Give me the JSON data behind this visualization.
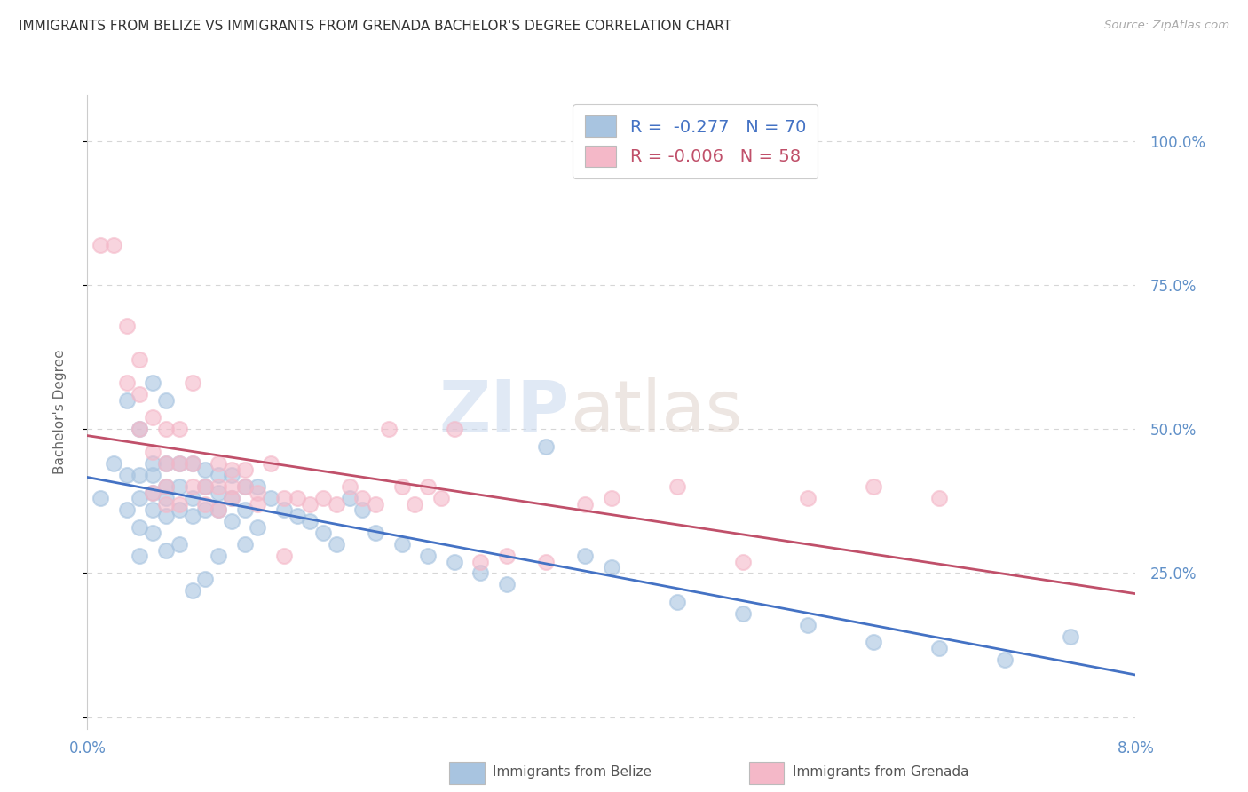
{
  "title": "IMMIGRANTS FROM BELIZE VS IMMIGRANTS FROM GRENADA BACHELOR'S DEGREE CORRELATION CHART",
  "source": "Source: ZipAtlas.com",
  "ylabel": "Bachelor's Degree",
  "xlim": [
    0.0,
    0.08
  ],
  "ylim": [
    -0.02,
    1.08
  ],
  "yticks": [
    0.0,
    0.25,
    0.5,
    0.75,
    1.0
  ],
  "ytick_labels_right": [
    "",
    "25.0%",
    "50.0%",
    "75.0%",
    "100.0%"
  ],
  "xticks": [
    0.0,
    0.02,
    0.04,
    0.06,
    0.08
  ],
  "xtick_labels": [
    "0.0%",
    "",
    "",
    "",
    "8.0%"
  ],
  "bg_color": "#ffffff",
  "grid_color": "#cccccc",
  "watermark_zip": "ZIP",
  "watermark_atlas": "atlas",
  "color_belize": "#a8c4e0",
  "color_grenada": "#f4b8c8",
  "line_color_belize": "#4472c4",
  "line_color_grenada": "#c0506a",
  "tick_color": "#6090c8",
  "belize_x": [
    0.001,
    0.002,
    0.003,
    0.003,
    0.003,
    0.004,
    0.004,
    0.004,
    0.004,
    0.004,
    0.005,
    0.005,
    0.005,
    0.005,
    0.005,
    0.005,
    0.006,
    0.006,
    0.006,
    0.006,
    0.006,
    0.006,
    0.007,
    0.007,
    0.007,
    0.007,
    0.008,
    0.008,
    0.008,
    0.008,
    0.009,
    0.009,
    0.009,
    0.009,
    0.01,
    0.01,
    0.01,
    0.01,
    0.011,
    0.011,
    0.011,
    0.012,
    0.012,
    0.012,
    0.013,
    0.013,
    0.014,
    0.015,
    0.016,
    0.017,
    0.018,
    0.019,
    0.02,
    0.021,
    0.022,
    0.024,
    0.026,
    0.028,
    0.03,
    0.032,
    0.035,
    0.038,
    0.04,
    0.045,
    0.05,
    0.055,
    0.06,
    0.065,
    0.07,
    0.075
  ],
  "belize_y": [
    0.38,
    0.44,
    0.42,
    0.55,
    0.36,
    0.5,
    0.42,
    0.38,
    0.33,
    0.28,
    0.58,
    0.44,
    0.42,
    0.39,
    0.36,
    0.32,
    0.55,
    0.44,
    0.4,
    0.38,
    0.35,
    0.29,
    0.44,
    0.4,
    0.36,
    0.3,
    0.44,
    0.38,
    0.35,
    0.22,
    0.43,
    0.4,
    0.36,
    0.24,
    0.42,
    0.39,
    0.36,
    0.28,
    0.42,
    0.38,
    0.34,
    0.4,
    0.36,
    0.3,
    0.4,
    0.33,
    0.38,
    0.36,
    0.35,
    0.34,
    0.32,
    0.3,
    0.38,
    0.36,
    0.32,
    0.3,
    0.28,
    0.27,
    0.25,
    0.23,
    0.47,
    0.28,
    0.26,
    0.2,
    0.18,
    0.16,
    0.13,
    0.12,
    0.1,
    0.14
  ],
  "grenada_x": [
    0.001,
    0.002,
    0.003,
    0.003,
    0.004,
    0.004,
    0.004,
    0.005,
    0.005,
    0.005,
    0.006,
    0.006,
    0.006,
    0.006,
    0.007,
    0.007,
    0.007,
    0.008,
    0.008,
    0.008,
    0.009,
    0.009,
    0.01,
    0.01,
    0.01,
    0.011,
    0.011,
    0.011,
    0.012,
    0.012,
    0.013,
    0.013,
    0.014,
    0.015,
    0.015,
    0.016,
    0.017,
    0.018,
    0.019,
    0.02,
    0.021,
    0.022,
    0.023,
    0.024,
    0.025,
    0.026,
    0.027,
    0.028,
    0.03,
    0.032,
    0.035,
    0.038,
    0.04,
    0.045,
    0.05,
    0.055,
    0.06,
    0.065
  ],
  "grenada_y": [
    0.82,
    0.82,
    0.68,
    0.58,
    0.62,
    0.56,
    0.5,
    0.52,
    0.46,
    0.39,
    0.5,
    0.44,
    0.4,
    0.37,
    0.5,
    0.44,
    0.37,
    0.58,
    0.44,
    0.4,
    0.4,
    0.37,
    0.44,
    0.4,
    0.36,
    0.43,
    0.4,
    0.38,
    0.43,
    0.4,
    0.39,
    0.37,
    0.44,
    0.38,
    0.28,
    0.38,
    0.37,
    0.38,
    0.37,
    0.4,
    0.38,
    0.37,
    0.5,
    0.4,
    0.37,
    0.4,
    0.38,
    0.5,
    0.27,
    0.28,
    0.27,
    0.37,
    0.38,
    0.4,
    0.27,
    0.38,
    0.4,
    0.38
  ]
}
